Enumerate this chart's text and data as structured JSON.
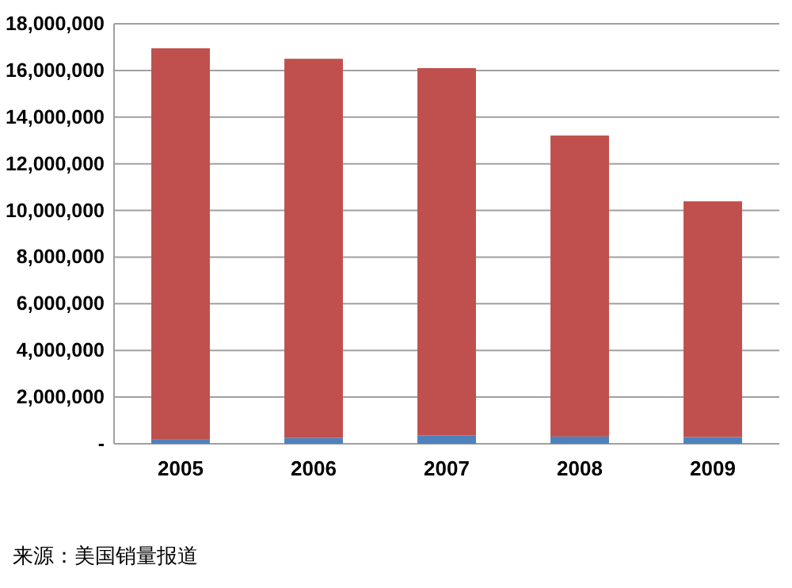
{
  "chart_data": {
    "type": "bar",
    "stacked": true,
    "categories": [
      "2005",
      "2006",
      "2007",
      "2008",
      "2009"
    ],
    "series": [
      {
        "color": "#4f81bd",
        "values": [
          200000,
          250000,
          350000,
          310000,
          290000
        ]
      },
      {
        "color": "#c0504d",
        "values": [
          16750000,
          16250000,
          15750000,
          12900000,
          10100000
        ]
      }
    ],
    "ylim": [
      0,
      18000000
    ],
    "yticks": [
      {
        "value": 0,
        "label": "-"
      },
      {
        "value": 2000000,
        "label": "2,000,000"
      },
      {
        "value": 4000000,
        "label": "4,000,000"
      },
      {
        "value": 6000000,
        "label": "6,000,000"
      },
      {
        "value": 8000000,
        "label": "8,000,000"
      },
      {
        "value": 10000000,
        "label": "10,000,000"
      },
      {
        "value": 12000000,
        "label": "12,000,000"
      },
      {
        "value": 14000000,
        "label": "14,000,000"
      },
      {
        "value": 16000000,
        "label": "16,000,000"
      },
      {
        "value": 18000000,
        "label": "18,000,000"
      }
    ],
    "grid": "y",
    "annotations": [
      "来源：美国销量报道"
    ]
  }
}
